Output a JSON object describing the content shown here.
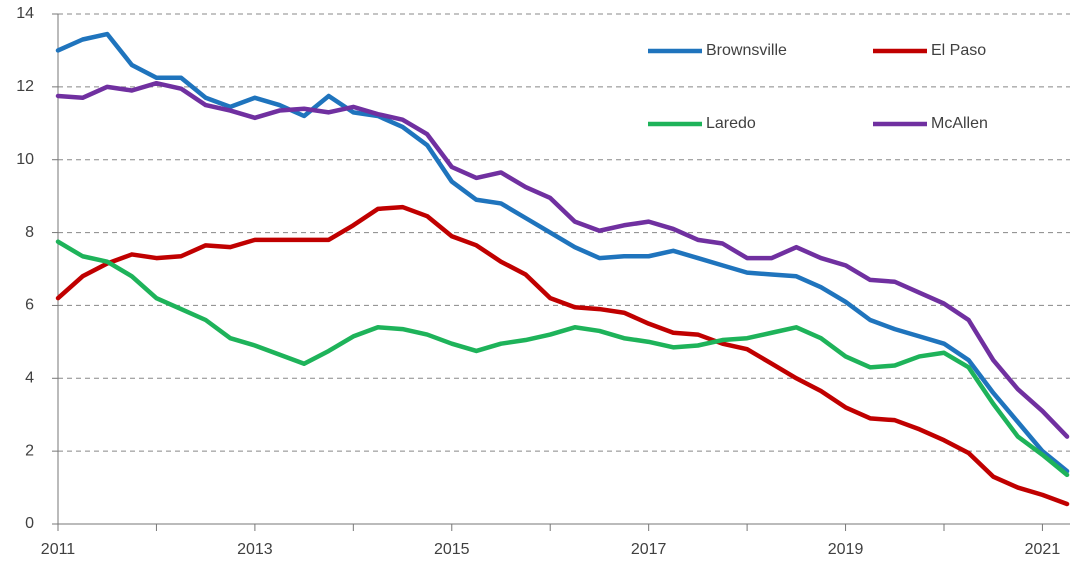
{
  "chart_data": {
    "type": "line",
    "x": [
      2011,
      2011.25,
      2011.5,
      2011.75,
      2012,
      2012.25,
      2012.5,
      2012.75,
      2013,
      2013.25,
      2013.5,
      2013.75,
      2014,
      2014.25,
      2014.5,
      2014.75,
      2015,
      2015.25,
      2015.5,
      2015.75,
      2016,
      2016.25,
      2016.5,
      2016.75,
      2017,
      2017.25,
      2017.5,
      2017.75,
      2018,
      2018.25,
      2018.5,
      2018.75,
      2019,
      2019.25,
      2019.5,
      2019.75,
      2020,
      2020.25,
      2020.5,
      2020.75,
      2021,
      2021.25
    ],
    "series": [
      {
        "name": "Brownsville",
        "color": "#1f74bd",
        "values": [
          13.0,
          13.3,
          13.45,
          12.6,
          12.25,
          12.25,
          11.7,
          11.45,
          11.7,
          11.5,
          11.2,
          11.75,
          11.3,
          11.2,
          10.9,
          10.4,
          9.4,
          8.9,
          8.8,
          8.4,
          8.0,
          7.6,
          7.3,
          7.35,
          7.35,
          7.5,
          7.3,
          7.1,
          6.9,
          6.85,
          6.8,
          6.5,
          6.1,
          5.6,
          5.35,
          5.15,
          4.95,
          4.5,
          3.6,
          2.8,
          2.0,
          1.45
        ]
      },
      {
        "name": "El Paso",
        "color": "#c00000",
        "values": [
          6.2,
          6.8,
          7.15,
          7.4,
          7.3,
          7.35,
          7.65,
          7.6,
          7.8,
          7.8,
          7.8,
          7.8,
          8.2,
          8.65,
          8.7,
          8.45,
          7.9,
          7.65,
          7.2,
          6.85,
          6.2,
          5.95,
          5.9,
          5.8,
          5.5,
          5.25,
          5.2,
          4.95,
          4.8,
          4.4,
          4.0,
          3.65,
          3.2,
          2.9,
          2.85,
          2.6,
          2.3,
          1.95,
          1.3,
          1.0,
          0.8,
          0.55
        ]
      },
      {
        "name": "Laredo",
        "color": "#1eb35a",
        "values": [
          7.75,
          7.35,
          7.2,
          6.8,
          6.2,
          5.9,
          5.6,
          5.1,
          4.9,
          4.65,
          4.4,
          4.75,
          5.15,
          5.4,
          5.35,
          5.2,
          4.95,
          4.75,
          4.95,
          5.05,
          5.2,
          5.4,
          5.3,
          5.1,
          5.0,
          4.85,
          4.9,
          5.05,
          5.1,
          5.25,
          5.4,
          5.1,
          4.6,
          4.3,
          4.35,
          4.6,
          4.7,
          4.3,
          3.3,
          2.4,
          1.9,
          1.35
        ]
      },
      {
        "name": "McAllen",
        "color": "#7030a0",
        "values": [
          11.75,
          11.7,
          12.0,
          11.9,
          12.1,
          11.95,
          11.5,
          11.35,
          11.15,
          11.35,
          11.4,
          11.3,
          11.45,
          11.25,
          11.1,
          10.7,
          9.8,
          9.5,
          9.65,
          9.25,
          8.95,
          8.3,
          8.05,
          8.2,
          8.3,
          8.1,
          7.8,
          7.7,
          7.3,
          7.3,
          7.6,
          7.3,
          7.1,
          6.7,
          6.65,
          6.35,
          6.05,
          5.6,
          4.5,
          3.7,
          3.1,
          2.4
        ]
      }
    ],
    "xlim": [
      2011,
      2021.28
    ],
    "xticks": [
      2011,
      2013,
      2015,
      2017,
      2019,
      2021
    ],
    "xminor_ticks": [
      2012,
      2014,
      2016,
      2018,
      2020
    ],
    "ylim": [
      0,
      14
    ],
    "yticks": [
      0,
      2,
      4,
      6,
      8,
      10,
      12,
      14
    ],
    "grid": true
  }
}
